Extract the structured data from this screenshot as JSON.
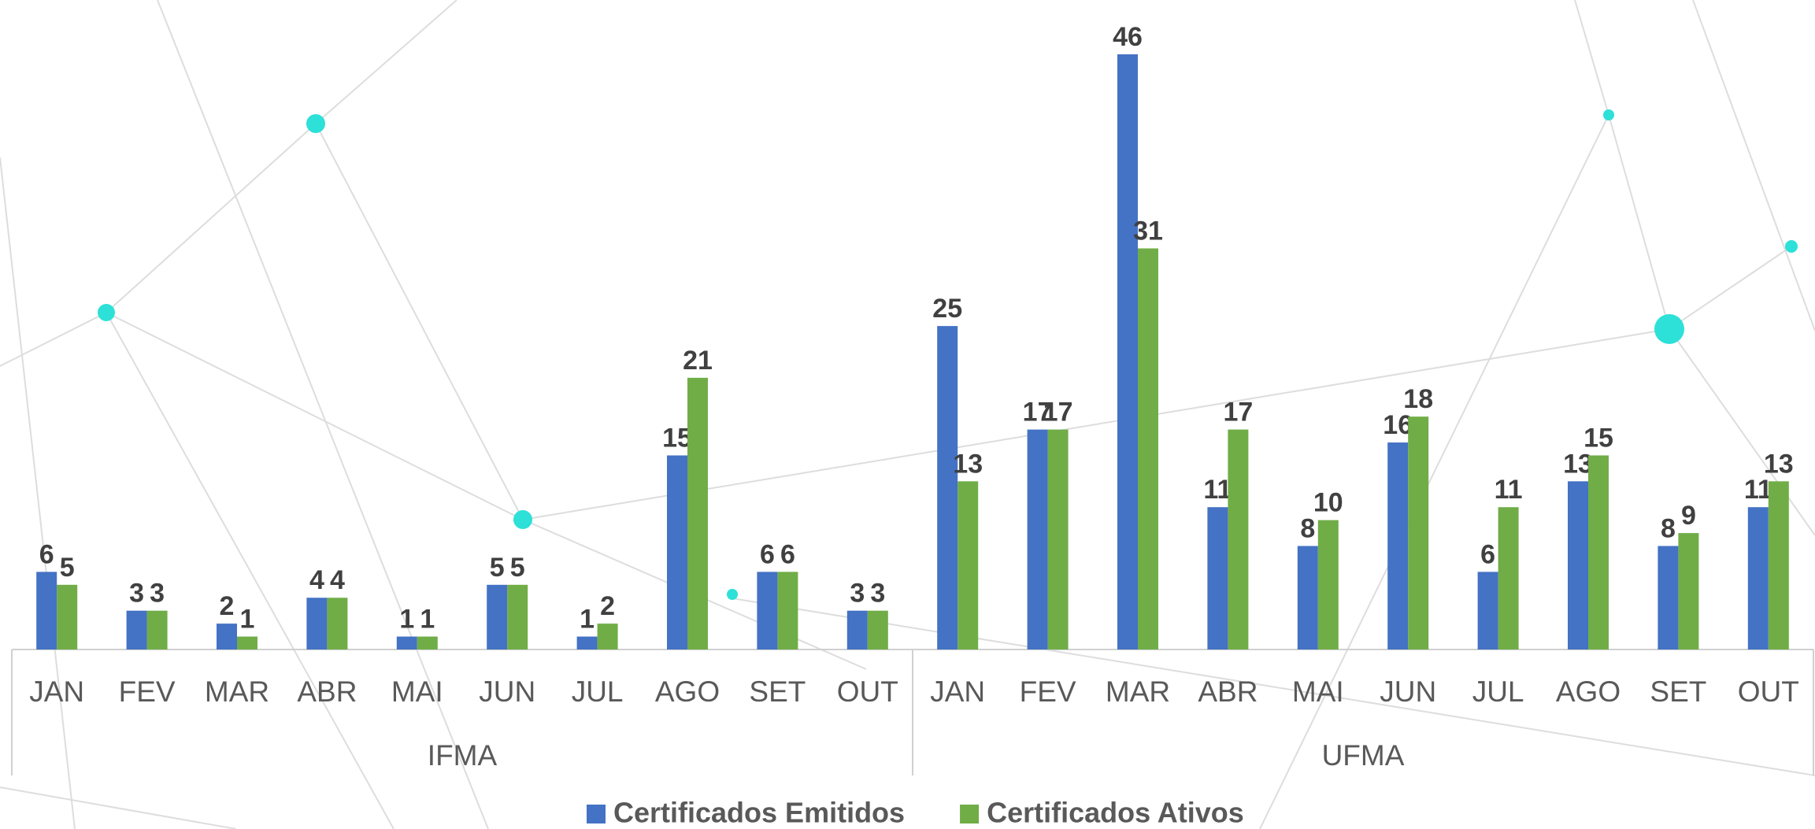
{
  "chart_data": {
    "type": "bar",
    "categories": [
      "JAN",
      "FEV",
      "MAR",
      "ABR",
      "MAI",
      "JUN",
      "JUL",
      "AGO",
      "SET",
      "OUT",
      "JAN",
      "FEV",
      "MAR",
      "ABR",
      "MAI",
      "JUN",
      "JUL",
      "AGO",
      "SET",
      "OUT"
    ],
    "groups": [
      "IFMA",
      "UFMA"
    ],
    "series": [
      {
        "name": "Certificados Emitidos",
        "color": "#4472c4",
        "values": [
          6,
          3,
          2,
          4,
          1,
          5,
          1,
          15,
          6,
          3,
          25,
          17,
          46,
          11,
          8,
          16,
          6,
          13,
          8,
          11
        ]
      },
      {
        "name": "Certificados Ativos",
        "color": "#70ad47",
        "values": [
          5,
          3,
          1,
          4,
          1,
          5,
          2,
          21,
          6,
          3,
          13,
          17,
          31,
          17,
          10,
          18,
          11,
          15,
          9,
          13
        ]
      }
    ],
    "legend": "bottom"
  }
}
